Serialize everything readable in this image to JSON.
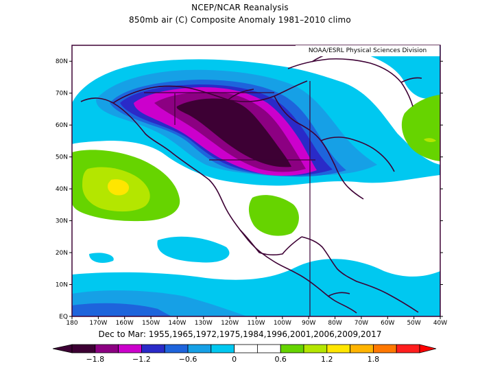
{
  "title_line1": "NCEP/NCAR Reanalysis",
  "title_line2": "850mb air (C) Composite Anomaly 1981–2010 climo",
  "credit": "NOAA/ESRL Physical Sciences Division",
  "subtitle": "Dec to Mar: 1955,1965,1972,1975,1984,1996,2001,2006,2009,2017",
  "lat_labels": [
    "80N",
    "70N",
    "60N",
    "50N",
    "40N",
    "30N",
    "20N",
    "10N",
    "EQ"
  ],
  "lon_labels": [
    "180",
    "170W",
    "160W",
    "150W",
    "140W",
    "130W",
    "120W",
    "110W",
    "100W",
    "90W",
    "80W",
    "70W",
    "60W",
    "50W",
    "40W"
  ],
  "colorbar": {
    "labels": [
      "−1.8",
      "−1.2",
      "−0.6",
      "0",
      "0.6",
      "1.2",
      "1.8"
    ],
    "colors": [
      "#3d0034",
      "#8c0082",
      "#cc00cc",
      "#2a2ac8",
      "#1e64dc",
      "#16a0e6",
      "#00c8f0",
      "#ffffff",
      "#ffffff",
      "#66d400",
      "#b4e600",
      "#ffe600",
      "#ffb400",
      "#ff7800",
      "#ff1e1e"
    ]
  },
  "legend_colors": {
    "darkest_negative": "#3d0034",
    "neutral": "#ffffff",
    "light_positive": "#66d400",
    "yellow_green": "#b4e600",
    "yellow": "#ffe600"
  }
}
